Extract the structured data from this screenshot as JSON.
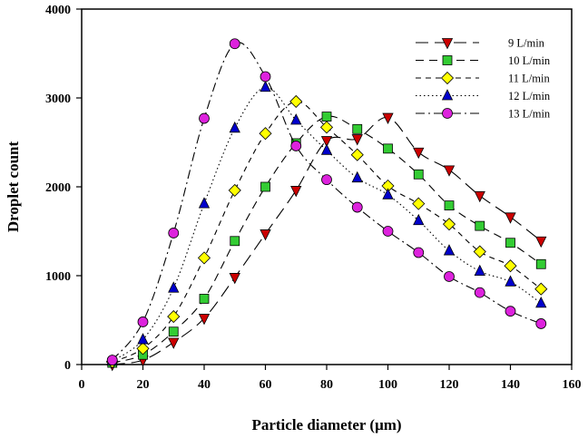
{
  "chart_data": {
    "type": "line",
    "xlabel": "Particle diameter (μm)",
    "ylabel": "Droplet count",
    "xlim": [
      0,
      160
    ],
    "ylim": [
      0,
      4000
    ],
    "xticks": [
      0,
      20,
      40,
      60,
      80,
      100,
      120,
      140,
      160
    ],
    "yticks": [
      0,
      1000,
      2000,
      3000,
      4000
    ],
    "grid": false,
    "legend_position": "top-right",
    "series": [
      {
        "name": "9 L/min",
        "marker": "triangle-down",
        "color": "#cc0000",
        "dash": "long-dash",
        "x": [
          10,
          20,
          30,
          40,
          50,
          60,
          70,
          80,
          90,
          100,
          110,
          120,
          130,
          140,
          150
        ],
        "y": [
          0,
          50,
          250,
          520,
          980,
          1470,
          1960,
          2520,
          2540,
          2780,
          2390,
          2190,
          1900,
          1660,
          1390
        ]
      },
      {
        "name": "10 L/min",
        "marker": "square",
        "color": "#33cc33",
        "dash": "dash",
        "x": [
          10,
          20,
          30,
          40,
          50,
          60,
          70,
          80,
          90,
          100,
          110,
          120,
          130,
          140,
          150
        ],
        "y": [
          20,
          110,
          370,
          740,
          1390,
          2000,
          2490,
          2790,
          2650,
          2430,
          2140,
          1790,
          1560,
          1370,
          1130
        ]
      },
      {
        "name": "11 L/min",
        "marker": "diamond",
        "color": "#ffff00",
        "dash": "short-dash",
        "x": [
          10,
          20,
          30,
          40,
          50,
          60,
          70,
          80,
          90,
          100,
          110,
          120,
          130,
          140,
          150
        ],
        "y": [
          30,
          180,
          540,
          1200,
          1960,
          2600,
          2960,
          2670,
          2360,
          2010,
          1810,
          1580,
          1270,
          1110,
          850
        ]
      },
      {
        "name": "12 L/min",
        "marker": "triangle-up",
        "color": "#0000cc",
        "dash": "dot",
        "x": [
          10,
          20,
          30,
          40,
          50,
          60,
          70,
          80,
          90,
          100,
          110,
          120,
          130,
          140,
          150
        ],
        "y": [
          40,
          280,
          860,
          1810,
          2660,
          3120,
          2750,
          2410,
          2100,
          1910,
          1620,
          1280,
          1050,
          930,
          690
        ]
      },
      {
        "name": "13 L/min",
        "marker": "circle",
        "color": "#dd22dd",
        "dash": "dash-dot",
        "x": [
          10,
          20,
          30,
          40,
          50,
          60,
          70,
          80,
          90,
          100,
          110,
          120,
          130,
          140,
          150
        ],
        "y": [
          50,
          480,
          1480,
          2770,
          3610,
          3240,
          2460,
          2080,
          1770,
          1500,
          1260,
          990,
          810,
          600,
          460
        ]
      }
    ]
  }
}
